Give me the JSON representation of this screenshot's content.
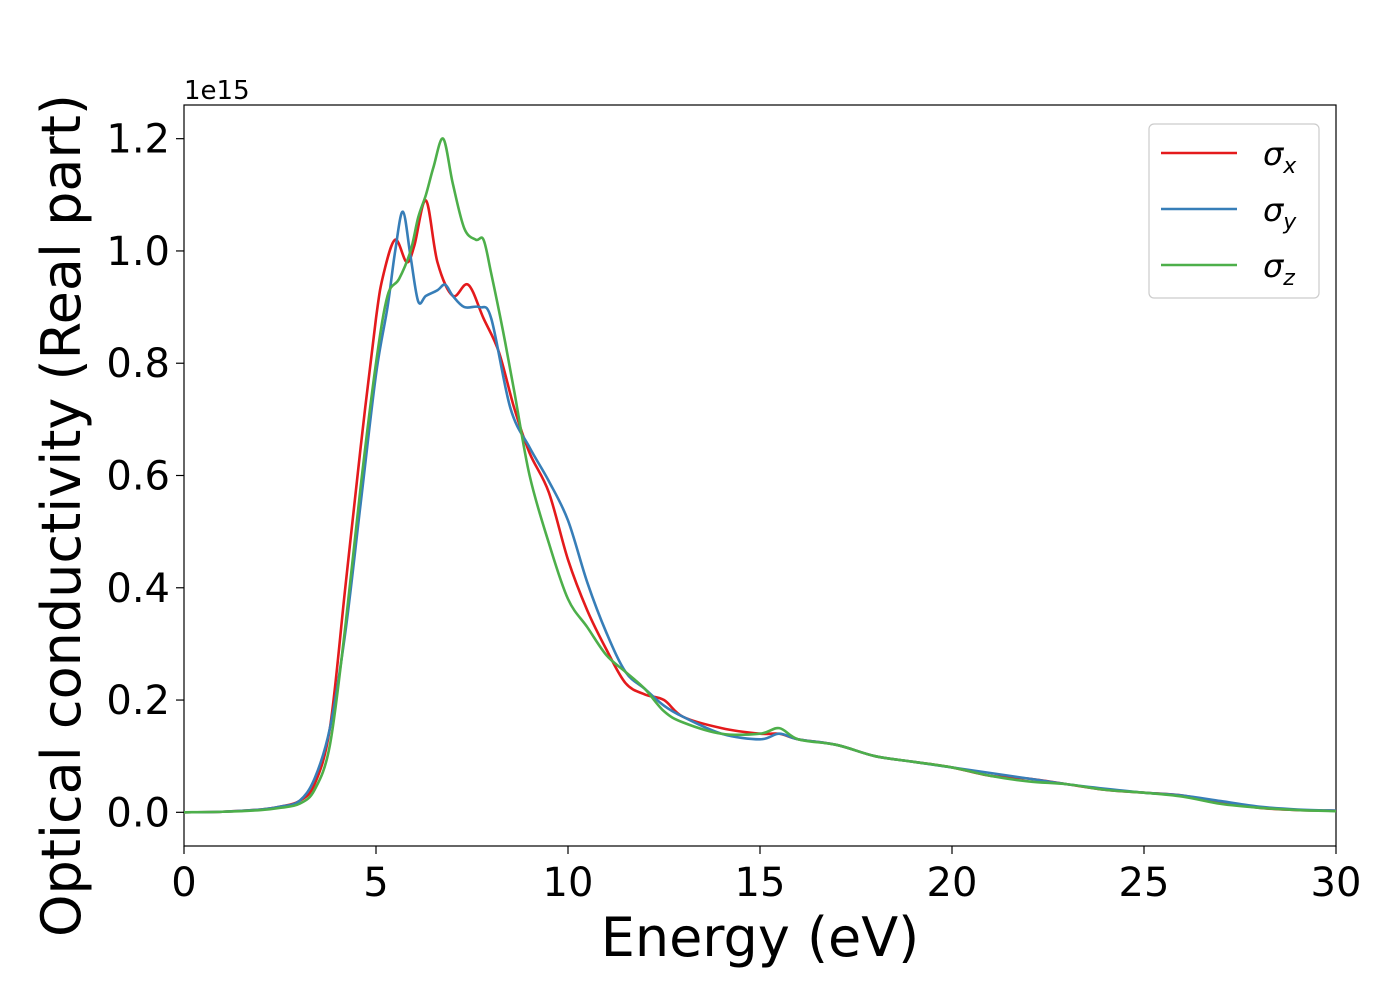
{
  "chart_data": {
    "type": "line",
    "xlabel": "Energy (eV)",
    "ylabel": "Optical conductivity (Real part)",
    "y_offset_label": "1e15",
    "xlim": [
      0,
      30
    ],
    "ylim": [
      -0.06,
      1.26
    ],
    "xticks": [
      0,
      5,
      10,
      15,
      20,
      25,
      30
    ],
    "xtick_labels": [
      "0",
      "5",
      "10",
      "15",
      "20",
      "25",
      "30"
    ],
    "yticks": [
      0.0,
      0.2,
      0.4,
      0.6,
      0.8,
      1.0,
      1.2
    ],
    "ytick_labels": [
      "0.0",
      "0.2",
      "0.4",
      "0.6",
      "0.8",
      "1.0",
      "1.2"
    ],
    "grid": false,
    "legend": {
      "location": "top-right"
    },
    "series": [
      {
        "name": "σ",
        "subscript": "x",
        "color": "#e41a1c",
        "x": [
          0,
          1,
          2,
          2.5,
          3,
          3.4,
          3.8,
          4.2,
          4.6,
          5.0,
          5.2,
          5.5,
          5.8,
          6.0,
          6.3,
          6.6,
          7.0,
          7.4,
          7.8,
          8.2,
          8.6,
          9.0,
          9.5,
          10.0,
          10.5,
          11.0,
          11.5,
          12.0,
          12.5,
          13.0,
          14.0,
          15.0,
          15.5,
          16.0,
          17.0,
          18.0,
          19.0,
          20.0,
          21.0,
          22.0,
          23.0,
          24.0,
          25.0,
          26.0,
          27.0,
          28.0,
          29.0,
          30.0
        ],
        "y": [
          0.0,
          0.001,
          0.005,
          0.01,
          0.02,
          0.05,
          0.15,
          0.4,
          0.65,
          0.88,
          0.96,
          1.02,
          0.98,
          1.01,
          1.09,
          0.98,
          0.92,
          0.94,
          0.88,
          0.82,
          0.72,
          0.64,
          0.57,
          0.45,
          0.36,
          0.29,
          0.23,
          0.21,
          0.2,
          0.17,
          0.15,
          0.14,
          0.14,
          0.13,
          0.12,
          0.1,
          0.09,
          0.08,
          0.065,
          0.06,
          0.05,
          0.04,
          0.035,
          0.03,
          0.018,
          0.008,
          0.004,
          0.003
        ]
      },
      {
        "name": "σ",
        "subscript": "y",
        "color": "#377eb8",
        "x": [
          0,
          1,
          2,
          2.5,
          3,
          3.4,
          3.8,
          4.2,
          4.6,
          5.0,
          5.3,
          5.5,
          5.7,
          5.9,
          6.1,
          6.3,
          6.6,
          6.8,
          7.0,
          7.3,
          7.7,
          8.0,
          8.5,
          9.0,
          9.5,
          10.0,
          10.5,
          11.0,
          11.5,
          12.0,
          12.5,
          13.0,
          14.0,
          15.0,
          15.5,
          16.0,
          17.0,
          18.0,
          19.0,
          20.0,
          21.0,
          22.0,
          23.0,
          24.0,
          25.0,
          26.0,
          27.0,
          28.0,
          29.0,
          30.0
        ],
        "y": [
          0.0,
          0.001,
          0.005,
          0.01,
          0.02,
          0.06,
          0.15,
          0.32,
          0.55,
          0.78,
          0.9,
          1.0,
          1.07,
          0.99,
          0.91,
          0.92,
          0.93,
          0.94,
          0.92,
          0.9,
          0.9,
          0.88,
          0.72,
          0.65,
          0.59,
          0.52,
          0.41,
          0.32,
          0.25,
          0.22,
          0.19,
          0.17,
          0.14,
          0.13,
          0.14,
          0.13,
          0.12,
          0.1,
          0.09,
          0.08,
          0.07,
          0.06,
          0.05,
          0.042,
          0.035,
          0.03,
          0.02,
          0.01,
          0.005,
          0.003
        ]
      },
      {
        "name": "σ",
        "subscript": "z",
        "color": "#4daf4a",
        "x": [
          0,
          1,
          2,
          2.5,
          3,
          3.4,
          3.8,
          4.2,
          4.6,
          5.0,
          5.3,
          5.6,
          5.9,
          6.1,
          6.3,
          6.5,
          6.75,
          7.0,
          7.3,
          7.6,
          7.8,
          8.0,
          8.3,
          8.6,
          9.0,
          9.5,
          10.0,
          10.5,
          11.0,
          11.5,
          12.0,
          12.5,
          13.0,
          14.0,
          15.0,
          15.5,
          16.0,
          17.0,
          18.0,
          19.0,
          20.0,
          21.0,
          22.0,
          23.0,
          24.0,
          25.0,
          26.0,
          27.0,
          28.0,
          29.0,
          30.0
        ],
        "y": [
          0.0,
          0.001,
          0.004,
          0.008,
          0.015,
          0.04,
          0.12,
          0.33,
          0.58,
          0.8,
          0.92,
          0.95,
          1.0,
          1.06,
          1.1,
          1.15,
          1.2,
          1.12,
          1.04,
          1.02,
          1.02,
          0.96,
          0.86,
          0.75,
          0.6,
          0.48,
          0.38,
          0.33,
          0.28,
          0.25,
          0.22,
          0.18,
          0.16,
          0.14,
          0.14,
          0.15,
          0.13,
          0.12,
          0.1,
          0.09,
          0.08,
          0.065,
          0.055,
          0.05,
          0.04,
          0.035,
          0.028,
          0.015,
          0.008,
          0.004,
          0.002
        ]
      }
    ]
  }
}
